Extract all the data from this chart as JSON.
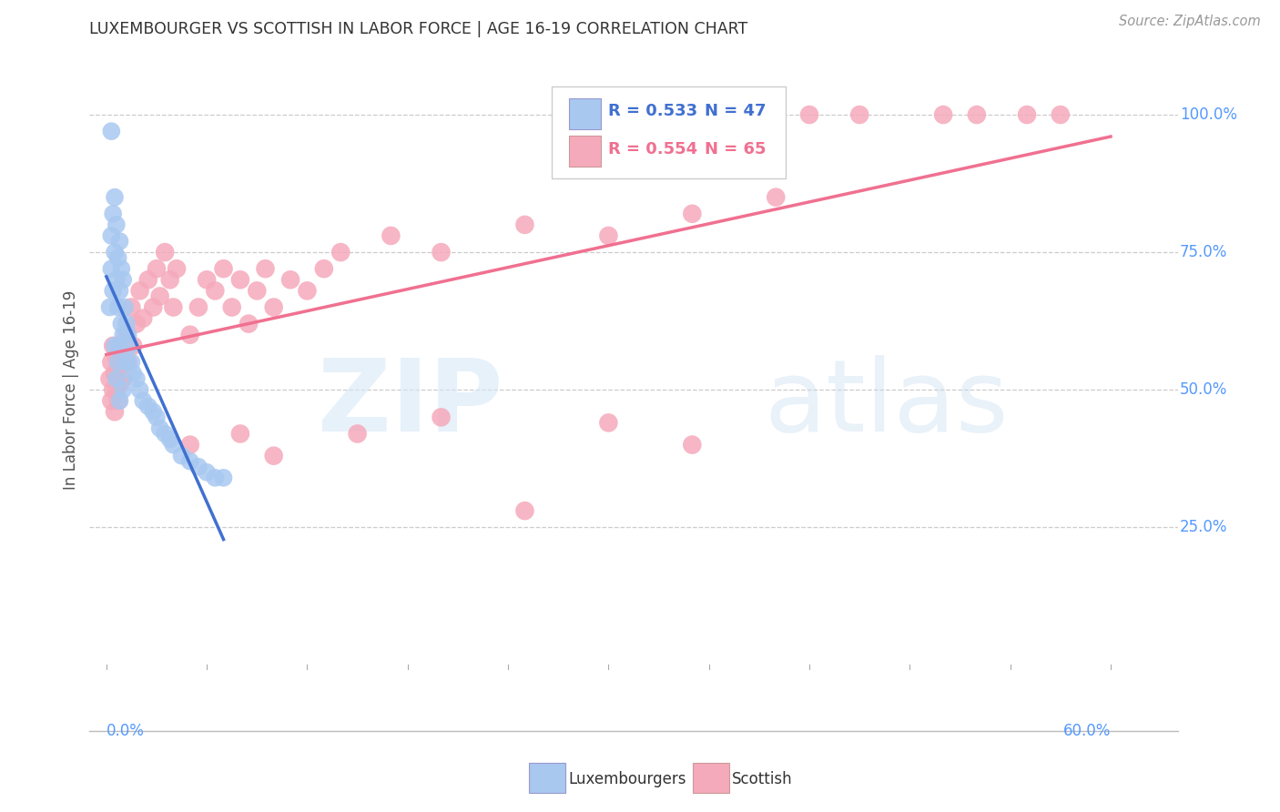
{
  "title": "LUXEMBOURGER VS SCOTTISH IN LABOR FORCE | AGE 16-19 CORRELATION CHART",
  "source": "Source: ZipAtlas.com",
  "ylabel": "In Labor Force | Age 16-19",
  "blue_color": "#A8C8F0",
  "pink_color": "#F5AABB",
  "blue_line_color": "#4070D0",
  "pink_line_color": "#F07090",
  "legend_blue_R": "R = 0.533",
  "legend_blue_N": "N = 47",
  "legend_pink_R": "R = 0.554",
  "legend_pink_N": "N = 65",
  "right_tick_color": "#5599FF",
  "blue_scatter": {
    "x": [
      0.002,
      0.003,
      0.004,
      0.005,
      0.005,
      0.006,
      0.006,
      0.007,
      0.007,
      0.008,
      0.008,
      0.009,
      0.009,
      0.01,
      0.01,
      0.011,
      0.012,
      0.013,
      0.014,
      0.015,
      0.015,
      0.016,
      0.017,
      0.018,
      0.019,
      0.02,
      0.021,
      0.022,
      0.024,
      0.026,
      0.028,
      0.03,
      0.032,
      0.034,
      0.036,
      0.04,
      0.042,
      0.045,
      0.05,
      0.055,
      0.006,
      0.008,
      0.01,
      0.012,
      0.014,
      0.05,
      0.065
    ],
    "y": [
      0.97,
      0.93,
      0.9,
      0.88,
      0.82,
      0.85,
      0.78,
      0.8,
      0.75,
      0.77,
      0.72,
      0.74,
      0.68,
      0.7,
      0.65,
      0.67,
      0.64,
      0.62,
      0.6,
      0.58,
      0.63,
      0.56,
      0.54,
      0.52,
      0.5,
      0.55,
      0.53,
      0.48,
      0.46,
      0.5,
      0.44,
      0.47,
      0.45,
      0.43,
      0.41,
      0.42,
      0.4,
      0.38,
      0.36,
      0.34,
      0.52,
      0.5,
      0.48,
      0.46,
      0.44,
      0.38,
      0.35
    ]
  },
  "pink_scatter": {
    "x": [
      0.002,
      0.003,
      0.004,
      0.005,
      0.005,
      0.006,
      0.006,
      0.007,
      0.008,
      0.008,
      0.009,
      0.01,
      0.01,
      0.011,
      0.012,
      0.013,
      0.014,
      0.015,
      0.016,
      0.018,
      0.02,
      0.022,
      0.025,
      0.028,
      0.03,
      0.032,
      0.035,
      0.038,
      0.04,
      0.042,
      0.045,
      0.048,
      0.05,
      0.055,
      0.06,
      0.065,
      0.07,
      0.075,
      0.08,
      0.085,
      0.09,
      0.095,
      0.1,
      0.11,
      0.12,
      0.13,
      0.14,
      0.15,
      0.16,
      0.18,
      0.003,
      0.004,
      0.005,
      0.006,
      0.007,
      0.009,
      0.011,
      0.013,
      0.015,
      0.018,
      0.022,
      0.028,
      0.035,
      0.045,
      0.08
    ],
    "y": [
      0.52,
      0.5,
      0.55,
      0.48,
      0.45,
      0.6,
      0.52,
      0.55,
      0.58,
      0.5,
      0.53,
      0.56,
      0.48,
      0.6,
      0.52,
      0.55,
      0.58,
      0.48,
      0.52,
      0.55,
      0.6,
      0.62,
      0.58,
      0.55,
      0.6,
      0.65,
      0.62,
      0.58,
      0.65,
      0.6,
      0.62,
      0.65,
      0.55,
      0.58,
      0.6,
      0.65,
      0.7,
      0.65,
      0.62,
      0.55,
      0.68,
      0.58,
      0.65,
      0.7,
      0.68,
      0.72,
      0.68,
      0.75,
      0.72,
      0.78,
      0.45,
      0.42,
      0.38,
      0.5,
      0.42,
      0.48,
      0.45,
      0.5,
      0.42,
      0.55,
      0.48,
      0.52,
      0.58,
      0.6,
      0.62
    ]
  },
  "xlim": [
    0.0,
    0.62
  ],
  "ylim": [
    -0.12,
    1.08
  ],
  "xmin": 0.0,
  "xmax": 0.6
}
